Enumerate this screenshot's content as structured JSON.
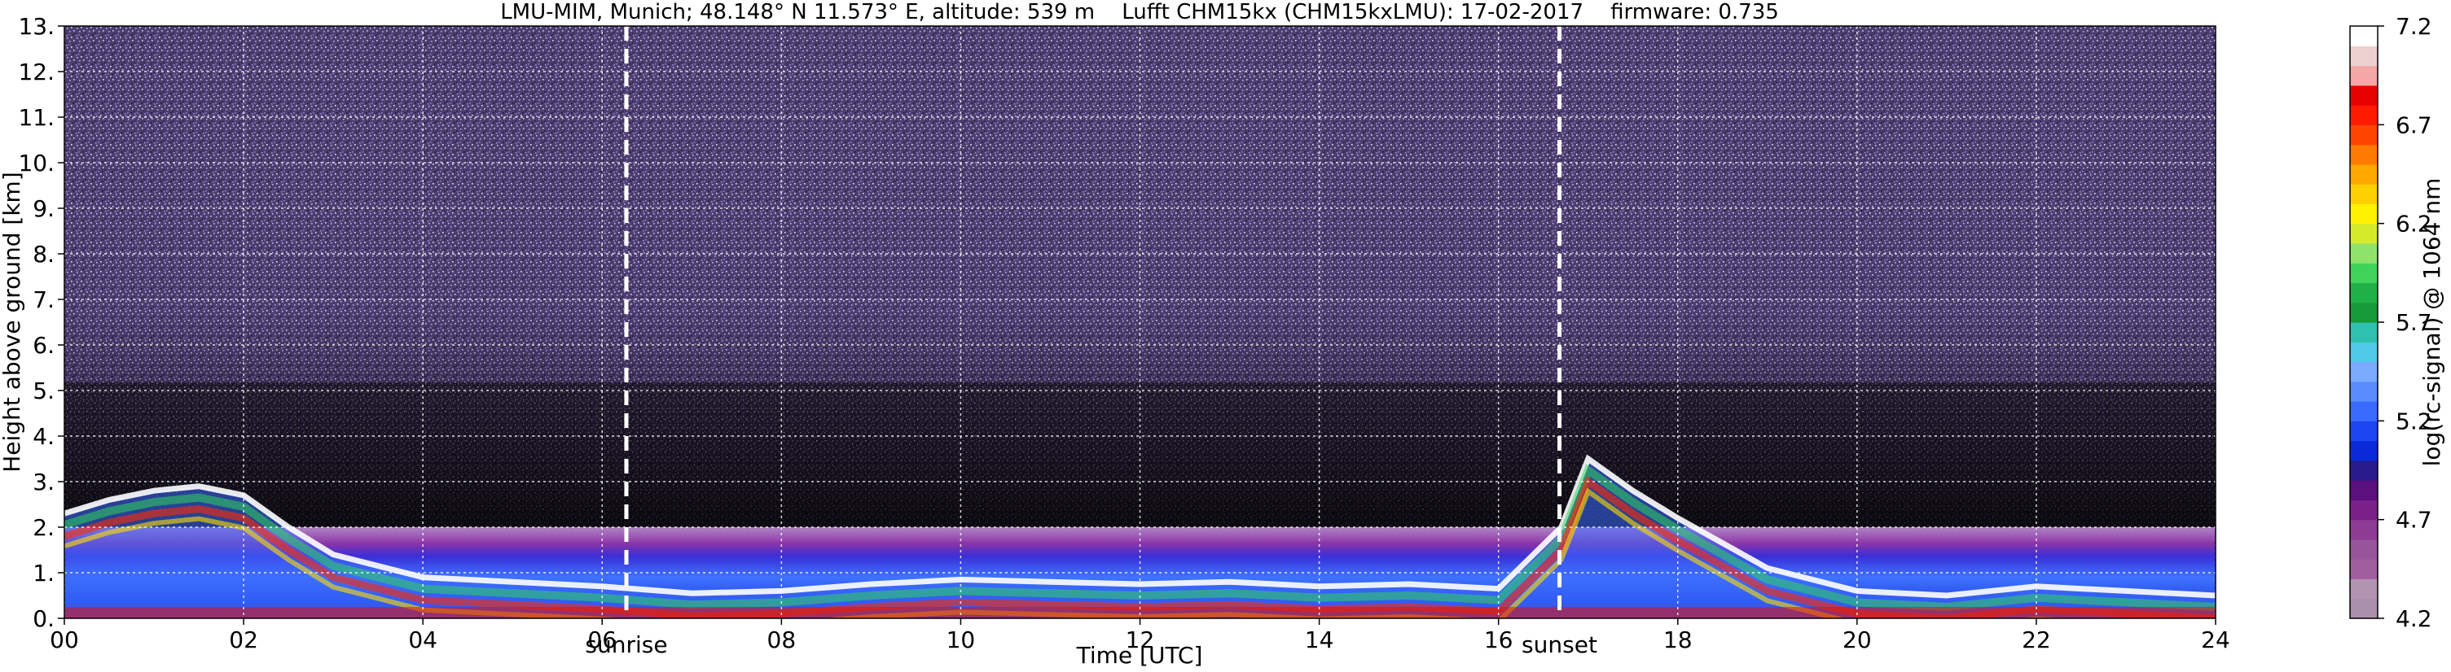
{
  "chart_data": {
    "type": "heatmap",
    "title": "LMU-MIM, Munich; 48.148° N 11.573° E, altitude: 539 m    Lufft CHM15kx (CHM15kxLMU): 17-02-2017    firmware: 0.735",
    "xlabel": "Time [UTC]",
    "ylabel": "Height above ground [km]",
    "xlim": [
      0,
      24
    ],
    "ylim": [
      0,
      13
    ],
    "x_ticks": [
      "00",
      "02",
      "04",
      "06",
      "08",
      "10",
      "12",
      "14",
      "16",
      "18",
      "20",
      "22",
      "24"
    ],
    "y_ticks": [
      "0.",
      "1.",
      "2.",
      "3.",
      "4.",
      "5.",
      "6.",
      "7.",
      "8.",
      "9.",
      "10.",
      "11.",
      "12.",
      "13."
    ],
    "grid": true,
    "colorbar": {
      "label": "log(rc-signal) @ 1064 nm",
      "range": [
        4.2,
        7.2
      ],
      "ticks": [
        "4.2",
        "4.7",
        "5.2",
        "5.7",
        "6.2",
        "6.7",
        "7.2"
      ],
      "colors": [
        "#ac8fab",
        "#b393b2",
        "#9f5f9e",
        "#98549a",
        "#8e3b94",
        "#7d1f8a",
        "#5c0f7e",
        "#2a1a8e",
        "#0a2ad8",
        "#1e46f0",
        "#3a6aff",
        "#5a8cff",
        "#7aaaff",
        "#4fc9e6",
        "#2fc0b0",
        "#169b3a",
        "#1fb047",
        "#3fd35a",
        "#8fe36a",
        "#d6ea2c",
        "#fff200",
        "#ffd000",
        "#ffa800",
        "#ff7a00",
        "#ff4400",
        "#ff1a00",
        "#e80000",
        "#f5a6a6",
        "#eecfd0",
        "#ffffff"
      ]
    },
    "events": [
      {
        "label": "sunrise",
        "time_utc_h": 6.27
      },
      {
        "label": "sunset",
        "time_utc_h": 16.68
      }
    ],
    "cloud_layer_base_km": [
      {
        "x": 0.0,
        "y": 2.3
      },
      {
        "x": 0.5,
        "y": 2.6
      },
      {
        "x": 1.0,
        "y": 2.8
      },
      {
        "x": 1.5,
        "y": 2.9
      },
      {
        "x": 2.0,
        "y": 2.7
      },
      {
        "x": 2.5,
        "y": 2.0
      },
      {
        "x": 3.0,
        "y": 1.4
      },
      {
        "x": 4.0,
        "y": 0.9
      },
      {
        "x": 5.0,
        "y": 0.8
      },
      {
        "x": 6.0,
        "y": 0.7
      },
      {
        "x": 7.0,
        "y": 0.55
      },
      {
        "x": 8.0,
        "y": 0.6
      },
      {
        "x": 9.0,
        "y": 0.75
      },
      {
        "x": 10.0,
        "y": 0.85
      },
      {
        "x": 11.0,
        "y": 0.8
      },
      {
        "x": 12.0,
        "y": 0.75
      },
      {
        "x": 13.0,
        "y": 0.8
      },
      {
        "x": 14.0,
        "y": 0.7
      },
      {
        "x": 15.0,
        "y": 0.75
      },
      {
        "x": 16.0,
        "y": 0.65
      },
      {
        "x": 16.7,
        "y": 2.0
      },
      {
        "x": 17.0,
        "y": 3.5
      },
      {
        "x": 17.5,
        "y": 2.8
      },
      {
        "x": 18.0,
        "y": 2.2
      },
      {
        "x": 19.0,
        "y": 1.1
      },
      {
        "x": 20.0,
        "y": 0.6
      },
      {
        "x": 21.0,
        "y": 0.5
      },
      {
        "x": 22.0,
        "y": 0.7
      },
      {
        "x": 23.0,
        "y": 0.6
      },
      {
        "x": 24.0,
        "y": 0.5
      }
    ]
  }
}
